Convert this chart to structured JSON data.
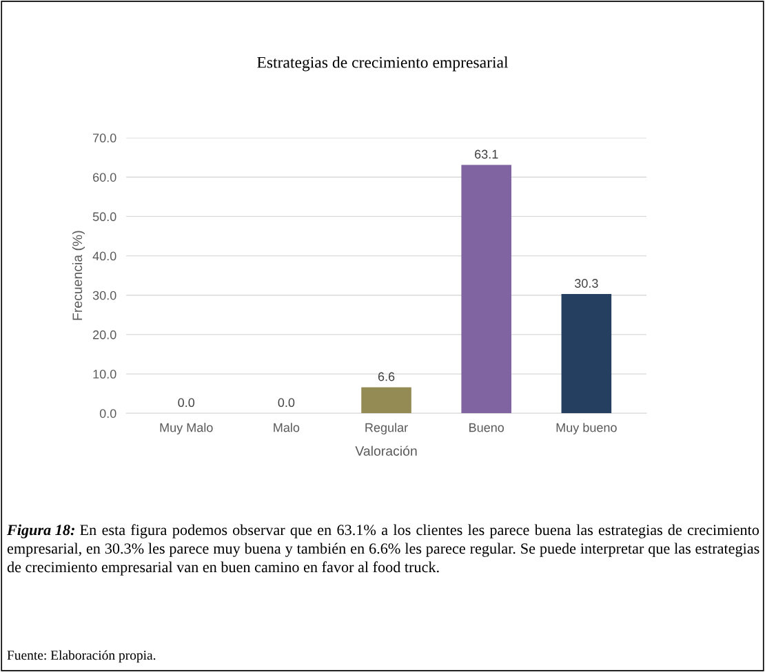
{
  "chart_data": {
    "type": "bar",
    "title": "Estrategias de crecimiento empresarial",
    "xlabel": "Valoración",
    "ylabel": "Frecuencia (%)",
    "categories": [
      "Muy Malo",
      "Malo",
      "Regular",
      "Bueno",
      "Muy bueno"
    ],
    "values": [
      0.0,
      0.0,
      6.6,
      63.1,
      30.3
    ],
    "colors": [
      "#953735",
      "#c55a11",
      "#948a54",
      "#8064a2",
      "#243f60"
    ],
    "value_labels": [
      "0.0",
      "0.0",
      "6.6",
      "63.1",
      "30.3"
    ],
    "ylim": [
      0,
      70
    ],
    "yticks": [
      {
        "value": 0,
        "label": "0.0"
      },
      {
        "value": 10,
        "label": "10.0"
      },
      {
        "value": 20,
        "label": "20.0"
      },
      {
        "value": 30,
        "label": "30.0"
      },
      {
        "value": 40,
        "label": "40.0"
      },
      {
        "value": 50,
        "label": "50.0"
      },
      {
        "value": 60,
        "label": "60.0"
      },
      {
        "value": 70,
        "label": "70.0"
      }
    ],
    "grid": "y",
    "legend": false,
    "annotations": [
      "Figura 18:",
      "En esta figura podemos observar que en 63.1% a los clientes les parece buena las estrategias de crecimiento empresarial, en 30.3% les parece muy buena y también en 6.6% les parece regular. Se puede interpretar que las estrategias de crecimiento empresarial van en buen camino en favor al food truck.",
      "Fuente: Elaboración propia."
    ]
  }
}
